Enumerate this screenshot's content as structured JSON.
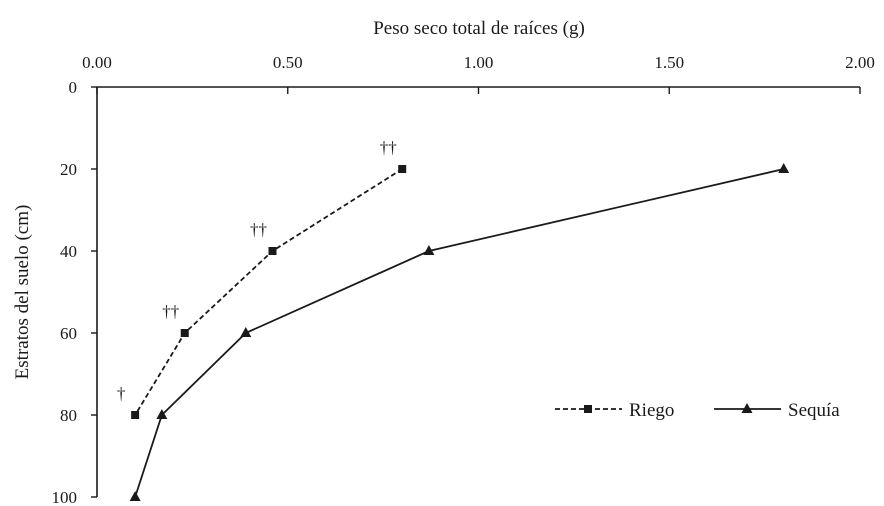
{
  "chart_data": {
    "type": "line",
    "title": "",
    "xlabel": "Peso seco total de raíces (g)",
    "ylabel": "Estratos del suelo (cm)",
    "xlim": [
      0,
      2
    ],
    "ylim": [
      0,
      100
    ],
    "y_inverted": true,
    "x_axis_position": "top",
    "x_ticks": [
      "0.00",
      "0.50",
      "1.00",
      "1.50",
      "2.00"
    ],
    "y_ticks": [
      "0",
      "20",
      "40",
      "60",
      "80",
      "100"
    ],
    "grid": false,
    "legend_position": "bottom-right",
    "series": [
      {
        "name": "Riego",
        "style": "dashed",
        "marker": "square",
        "color": "#1a1a1a",
        "points": [
          {
            "x": 0.8,
            "y": 20,
            "annotation": "††"
          },
          {
            "x": 0.46,
            "y": 40,
            "annotation": "††"
          },
          {
            "x": 0.23,
            "y": 60,
            "annotation": "††"
          },
          {
            "x": 0.1,
            "y": 80,
            "annotation": "†"
          }
        ]
      },
      {
        "name": "Sequía",
        "style": "solid",
        "marker": "triangle",
        "color": "#1a1a1a",
        "points": [
          {
            "x": 1.8,
            "y": 20
          },
          {
            "x": 0.87,
            "y": 40
          },
          {
            "x": 0.39,
            "y": 60
          },
          {
            "x": 0.17,
            "y": 80
          },
          {
            "x": 0.1,
            "y": 100
          }
        ]
      }
    ]
  }
}
